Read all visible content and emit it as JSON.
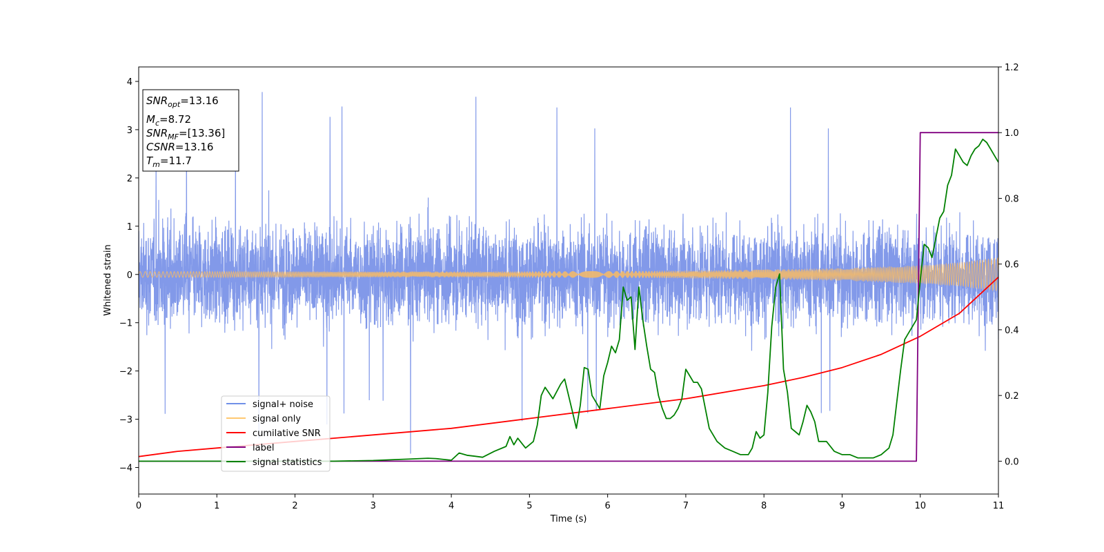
{
  "chart_data": {
    "type": "line",
    "xlabel": "Time (s)",
    "ylabel": "Whitened strain",
    "xlim": [
      0,
      11
    ],
    "ylim_left": [
      -4.55,
      4.3
    ],
    "ylim_right": [
      -0.1,
      1.2
    ],
    "x_ticks": [
      "0",
      "1",
      "2",
      "3",
      "4",
      "5",
      "6",
      "7",
      "8",
      "9",
      "10",
      "11"
    ],
    "y_ticks_left": [
      "4",
      "3",
      "2",
      "1",
      "0",
      "−1",
      "−2",
      "−3",
      "−4"
    ],
    "y_ticks_right": [
      "1.2",
      "1.0",
      "0.8",
      "0.6",
      "0.4",
      "0.2",
      "0.0"
    ],
    "annotation": {
      "lines": [
        {
          "sym": "SNR",
          "sub": "opt",
          "value": "=13.16"
        },
        {
          "sym": "M",
          "sub": "c",
          "value": "=8.72"
        },
        {
          "sym": "SNR",
          "sub": "MF",
          "value": "=[13.36]"
        },
        {
          "sym": "CSNR",
          "sub": "",
          "value": "=13.16"
        },
        {
          "sym": "T",
          "sub": "m",
          "value": "=11.7"
        }
      ]
    },
    "legend": {
      "placement": "lower-left",
      "entries": [
        {
          "label": "signal+ noise",
          "color": "#7090e8"
        },
        {
          "label": "signal only",
          "color": "#ffc870"
        },
        {
          "label": "cumilative SNR",
          "color": "#ff0000"
        },
        {
          "label": "label",
          "color": "#800080"
        },
        {
          "label": "signal statistics",
          "color": "#008000"
        }
      ]
    },
    "series": [
      {
        "name": "signal+ noise",
        "axis": "left",
        "color": "#7b93e8",
        "noise_std": 0.9,
        "peak_max": 3.88,
        "trough_min": -4.18
      },
      {
        "name": "signal only",
        "axis": "left",
        "color": "#f2b96c",
        "amplitude": {
          "x": [
            0,
            2,
            4,
            6,
            7,
            8,
            9,
            10,
            10.5,
            11
          ],
          "y": [
            0.06,
            0.06,
            0.06,
            0.07,
            0.08,
            0.1,
            0.13,
            0.19,
            0.25,
            0.35
          ]
        }
      },
      {
        "name": "cumilative SNR",
        "axis": "right",
        "color": "#ff0000",
        "x": [
          0,
          0.5,
          1,
          2,
          3,
          4,
          5,
          6,
          7,
          8,
          8.5,
          9,
          9.5,
          10,
          10.5,
          11
        ],
        "y": [
          0.014,
          0.03,
          0.04,
          0.06,
          0.08,
          0.1,
          0.13,
          0.16,
          0.19,
          0.23,
          0.255,
          0.285,
          0.325,
          0.38,
          0.45,
          0.56
        ]
      },
      {
        "name": "label",
        "axis": "right",
        "color": "#800080",
        "x": [
          0,
          9.95,
          10,
          11
        ],
        "y": [
          0,
          0,
          1,
          1
        ]
      },
      {
        "name": "signal statistics",
        "axis": "right",
        "color": "#008000",
        "x": [
          0,
          0.5,
          1,
          1.5,
          2,
          2.5,
          3,
          3.3,
          3.5,
          3.7,
          3.8,
          4.0,
          4.1,
          4.2,
          4.3,
          4.4,
          4.55,
          4.7,
          4.75,
          4.8,
          4.85,
          4.9,
          4.95,
          5.0,
          5.05,
          5.1,
          5.15,
          5.2,
          5.3,
          5.4,
          5.45,
          5.55,
          5.6,
          5.65,
          5.7,
          5.75,
          5.8,
          5.9,
          5.95,
          6.0,
          6.05,
          6.1,
          6.15,
          6.2,
          6.25,
          6.3,
          6.35,
          6.4,
          6.45,
          6.5,
          6.55,
          6.6,
          6.65,
          6.7,
          6.75,
          6.8,
          6.85,
          6.9,
          6.95,
          7.0,
          7.05,
          7.1,
          7.15,
          7.2,
          7.3,
          7.4,
          7.5,
          7.6,
          7.7,
          7.75,
          7.8,
          7.85,
          7.9,
          7.95,
          8.0,
          8.05,
          8.1,
          8.15,
          8.2,
          8.25,
          8.3,
          8.35,
          8.4,
          8.45,
          8.5,
          8.55,
          8.6,
          8.65,
          8.7,
          8.8,
          8.9,
          9.0,
          9.1,
          9.2,
          9.3,
          9.4,
          9.5,
          9.55,
          9.6,
          9.65,
          9.7,
          9.75,
          9.8,
          9.85,
          9.9,
          9.95,
          10.0,
          10.05,
          10.1,
          10.15,
          10.2,
          10.25,
          10.3,
          10.35,
          10.4,
          10.45,
          10.5,
          10.55,
          10.6,
          10.65,
          10.7,
          10.75,
          10.8,
          10.85,
          10.9,
          10.95,
          11.0
        ],
        "y": [
          0.0,
          0.0,
          0.0,
          0.0,
          0.0,
          0.0,
          0.002,
          0.005,
          0.007,
          0.009,
          0.008,
          0.003,
          0.025,
          0.018,
          0.015,
          0.012,
          0.03,
          0.045,
          0.075,
          0.05,
          0.07,
          0.055,
          0.04,
          0.05,
          0.06,
          0.11,
          0.2,
          0.225,
          0.19,
          0.235,
          0.25,
          0.15,
          0.1,
          0.17,
          0.285,
          0.28,
          0.2,
          0.16,
          0.26,
          0.3,
          0.35,
          0.33,
          0.37,
          0.53,
          0.49,
          0.5,
          0.34,
          0.53,
          0.43,
          0.35,
          0.28,
          0.27,
          0.2,
          0.16,
          0.13,
          0.13,
          0.14,
          0.16,
          0.19,
          0.28,
          0.26,
          0.24,
          0.24,
          0.22,
          0.1,
          0.06,
          0.04,
          0.03,
          0.02,
          0.02,
          0.02,
          0.04,
          0.09,
          0.07,
          0.08,
          0.21,
          0.41,
          0.53,
          0.57,
          0.28,
          0.21,
          0.1,
          0.09,
          0.08,
          0.12,
          0.17,
          0.15,
          0.12,
          0.06,
          0.06,
          0.03,
          0.02,
          0.02,
          0.01,
          0.01,
          0.01,
          0.02,
          0.03,
          0.04,
          0.08,
          0.18,
          0.28,
          0.37,
          0.39,
          0.41,
          0.43,
          0.55,
          0.66,
          0.65,
          0.62,
          0.68,
          0.74,
          0.76,
          0.84,
          0.87,
          0.95,
          0.93,
          0.91,
          0.9,
          0.93,
          0.95,
          0.96,
          0.98,
          0.97,
          0.95,
          0.93,
          0.91
        ]
      }
    ]
  }
}
